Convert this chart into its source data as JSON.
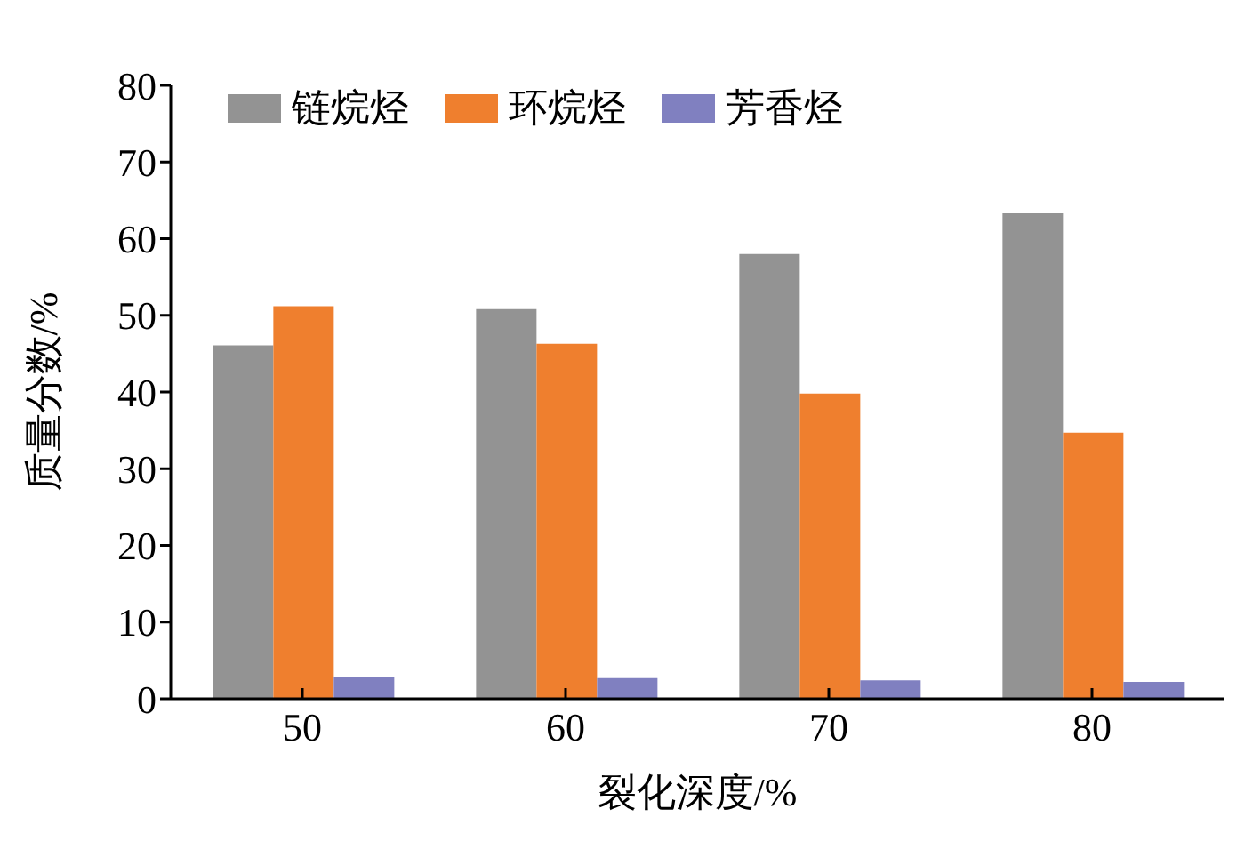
{
  "chart_data": {
    "type": "bar",
    "xlabel": "裂化深度/%",
    "ylabel": "质量分数/%",
    "categories": [
      "50",
      "60",
      "70",
      "80"
    ],
    "series": [
      {
        "name": "链烷烃",
        "color": "#939393",
        "values": [
          46.1,
          50.8,
          58.0,
          63.3
        ]
      },
      {
        "name": "环烷烃",
        "color": "#ef7f2e",
        "values": [
          51.2,
          46.3,
          39.8,
          34.7
        ]
      },
      {
        "name": "芳香烃",
        "color": "#8080c0",
        "values": [
          2.9,
          2.7,
          2.4,
          2.2
        ]
      }
    ],
    "ylim": [
      0,
      80
    ],
    "yticks": [
      0,
      10,
      20,
      30,
      40,
      50,
      60,
      70,
      80
    ],
    "grid": false,
    "legend": "top left"
  }
}
